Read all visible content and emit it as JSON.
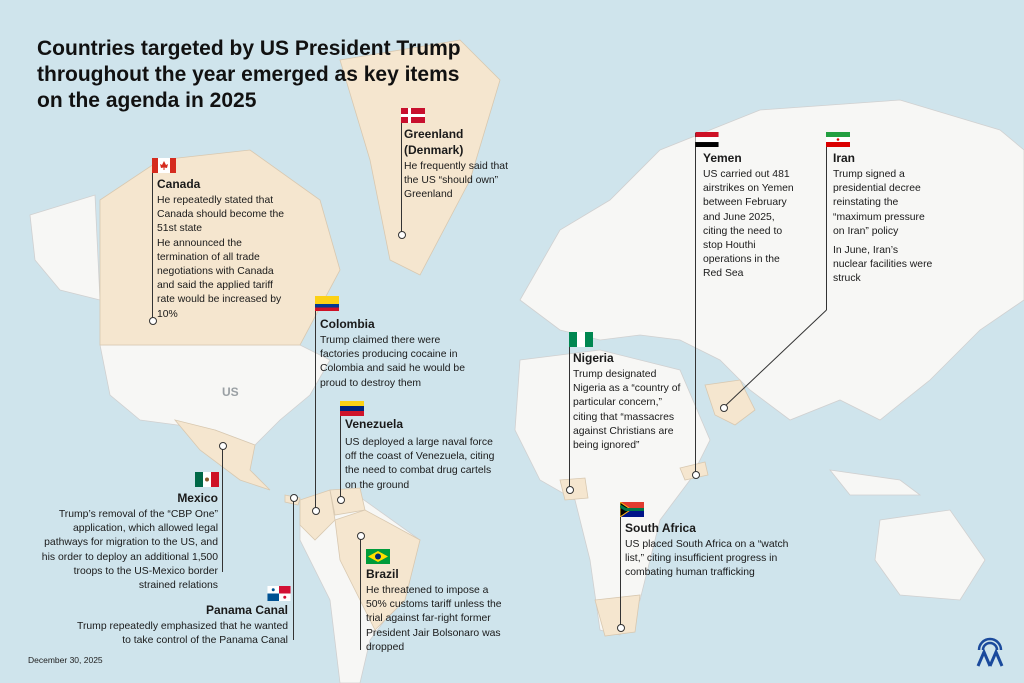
{
  "title_lines": [
    "Countries targeted by US President Trump",
    "throughout the year emerged as key items",
    "on the agenda in 2025"
  ],
  "map_labels": {
    "us": "US"
  },
  "colors": {
    "ocean": "#cfe4ec",
    "land": "#f7f7f5",
    "highlight": "#f5e6cf",
    "border": "#d0d0d0",
    "leader": "#333333"
  },
  "annotations": {
    "greenland": {
      "name_lines": [
        "Greenland",
        "(Denmark)"
      ],
      "text": [
        "He frequently said that the US “should own” Greenland"
      ]
    },
    "canada": {
      "name": "Canada",
      "text": [
        "He repeatedly stated that Canada should become the 51st state",
        "He announced the termination of all trade negotiations with Canada and said the applied tariff rate would be increased by 10%"
      ]
    },
    "colombia": {
      "name": "Colombia",
      "text": [
        "Trump claimed there were factories producing cocaine in Colombia and said he would be proud to destroy them"
      ]
    },
    "venezuela": {
      "name": "Venezuela",
      "text": [
        "US deployed a large naval force off the coast of Venezuela, citing the need to combat drug cartels on the ground"
      ]
    },
    "mexico": {
      "name": "Mexico",
      "text": [
        "Trump’s removal of the “CBP One” application, which allowed legal pathways for migration to the US, and his order to deploy an additional 1,500 troops to the US-Mexico border strained relations"
      ]
    },
    "panama": {
      "name": "Panama Canal",
      "text": [
        "Trump repeatedly emphasized that he wanted to take control of the Panama Canal"
      ]
    },
    "brazil": {
      "name": "Brazil",
      "text": [
        "He threatened to impose a 50% customs tariff unless the trial against far-right former President Jair Bolsonaro was dropped"
      ]
    },
    "nigeria": {
      "name": "Nigeria",
      "text": [
        "Trump designated Nigeria as a “country of particular concern,” citing that “massacres against Christians are being ignored”"
      ]
    },
    "yemen": {
      "name": "Yemen",
      "text": [
        "US carried out 481 airstrikes on Yemen between February and June 2025, citing the need to stop Houthi operations in the Red Sea"
      ]
    },
    "iran": {
      "name": "Iran",
      "text": [
        "Trump signed a presidential decree reinstating the “maximum pressure on Iran” policy",
        "In June, Iran’s nuclear facilities were struck"
      ]
    },
    "south_africa": {
      "name": "South Africa",
      "text": [
        "US placed South Africa on a “watch list,” citing insufficient progress in combating human trafficking"
      ]
    }
  },
  "date": "December 30, 2025",
  "logo": "AA"
}
